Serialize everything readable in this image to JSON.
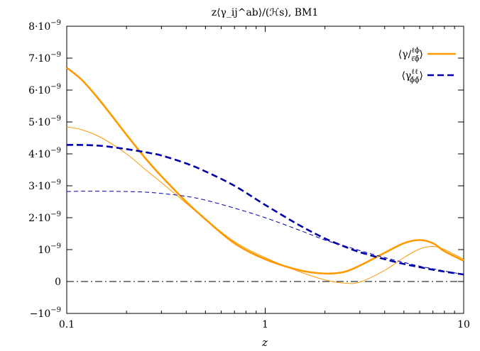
{
  "chart_data": {
    "type": "line",
    "title": "z⟨γ_ij^ab⟩/(ℋs), BM1",
    "xlabel": "z",
    "ylabel": "",
    "xscale": "log",
    "xlim": [
      0.1,
      10
    ],
    "ylim": [
      -1e-09,
      8e-09
    ],
    "x_ticks": [
      {
        "value": 0.1,
        "label": "0.1"
      },
      {
        "value": 1,
        "label": "1"
      },
      {
        "value": 10,
        "label": "10"
      }
    ],
    "y_ticks": [
      {
        "value": 8e-09,
        "base": "8·10",
        "exp": "−9"
      },
      {
        "value": 7e-09,
        "base": "7·10",
        "exp": "−9"
      },
      {
        "value": 6e-09,
        "base": "6·10",
        "exp": "−9"
      },
      {
        "value": 5e-09,
        "base": "5·10",
        "exp": "−9"
      },
      {
        "value": 4e-09,
        "base": "4·10",
        "exp": "−9"
      },
      {
        "value": 3e-09,
        "base": "3·10",
        "exp": "−9"
      },
      {
        "value": 2e-09,
        "base": "2·10",
        "exp": "−9"
      },
      {
        "value": 1e-09,
        "base": "10",
        "exp": "−9"
      },
      {
        "value": 0,
        "base": "0",
        "exp": ""
      },
      {
        "value": -1e-09,
        "base": "−10",
        "exp": "−9"
      }
    ],
    "legend_position": "top-right",
    "grid": false,
    "zero_line": {
      "y": 0,
      "style": "dash-dot",
      "color": "#000000"
    },
    "series": [
      {
        "name": "⟨γ/ℓϕ ℓ̄ϕ̄⟩",
        "legend_text": "⟨γ/",
        "legend_sup": "ℓϕ",
        "legend_sub": "ℓ̄ϕ̄",
        "color": "#ff9900",
        "style": "solid",
        "weight": "thick",
        "x": [
          0.1,
          0.12,
          0.15,
          0.2,
          0.25,
          0.3,
          0.4,
          0.5,
          0.7,
          1.0,
          1.5,
          2.0,
          2.5,
          3.0,
          4.0,
          5.0,
          6.0,
          7.0,
          8.0,
          10.0
        ],
        "y": [
          6.7e-09,
          6.3e-09,
          5.6e-09,
          4.6e-09,
          3.85e-09,
          3.3e-09,
          2.5e-09,
          1.95e-09,
          1.2e-09,
          7e-10,
          3.5e-10,
          2.5e-10,
          3e-10,
          5e-10,
          9e-10,
          1.2e-09,
          1.3e-09,
          1.2e-09,
          9.5e-10,
          6.5e-10
        ]
      },
      {
        "name": "⟨γ/ℓϕ ℓ̄ϕ̄⟩ (thin)",
        "color": "#ff9900",
        "style": "solid",
        "weight": "thin",
        "legend": false,
        "x": [
          0.1,
          0.12,
          0.15,
          0.2,
          0.25,
          0.3,
          0.4,
          0.5,
          0.7,
          1.0,
          1.5,
          2.0,
          2.5,
          3.0,
          4.0,
          5.0,
          6.0,
          7.0,
          8.0,
          10.0
        ],
        "y": [
          4.85e-09,
          4.75e-09,
          4.5e-09,
          4e-09,
          3.5e-09,
          3.1e-09,
          2.45e-09,
          1.95e-09,
          1.25e-09,
          7.5e-10,
          3e-10,
          5e-11,
          -5e-11,
          -2e-11,
          3.5e-10,
          7.5e-10,
          1.02e-09,
          1.1e-09,
          1e-09,
          7e-10
        ]
      },
      {
        "name": "⟨γℓℓ ϕ̄ϕ̄⟩",
        "legend_text": "⟨γ",
        "legend_sup": "ℓℓ",
        "legend_sub": "ϕ̄ϕ̄",
        "color": "#0000aa",
        "style": "dashed",
        "weight": "thick",
        "x": [
          0.1,
          0.12,
          0.15,
          0.2,
          0.25,
          0.3,
          0.4,
          0.5,
          0.7,
          1.0,
          1.5,
          2.0,
          2.5,
          3.0,
          4.0,
          5.0,
          6.0,
          7.0,
          8.0,
          10.0
        ],
        "y": [
          4.28e-09,
          4.28e-09,
          4.25e-09,
          4.15e-09,
          4.05e-09,
          3.95e-09,
          3.7e-09,
          3.45e-09,
          3e-09,
          2.4e-09,
          1.75e-09,
          1.35e-09,
          1.1e-09,
          9.2e-10,
          7e-10,
          5.5e-10,
          4.5e-10,
          3.7e-10,
          3.1e-10,
          2.2e-10
        ]
      },
      {
        "name": "⟨γℓℓ ϕ̄ϕ̄⟩ (thin)",
        "color": "#0000aa",
        "style": "dashed",
        "weight": "thin",
        "legend": false,
        "x": [
          0.1,
          0.12,
          0.15,
          0.2,
          0.25,
          0.3,
          0.4,
          0.5,
          0.7,
          1.0,
          1.5,
          2.0,
          2.5,
          3.0,
          4.0,
          5.0,
          6.0,
          7.0,
          8.0,
          10.0
        ],
        "y": [
          2.82e-09,
          2.83e-09,
          2.83e-09,
          2.82e-09,
          2.8e-09,
          2.76e-09,
          2.67e-09,
          2.55e-09,
          2.3e-09,
          2e-09,
          1.6e-09,
          1.3e-09,
          1.12e-09,
          9.7e-10,
          7.5e-10,
          6e-10,
          4.8e-10,
          4e-10,
          3.3e-10,
          2.2e-10
        ]
      }
    ]
  }
}
